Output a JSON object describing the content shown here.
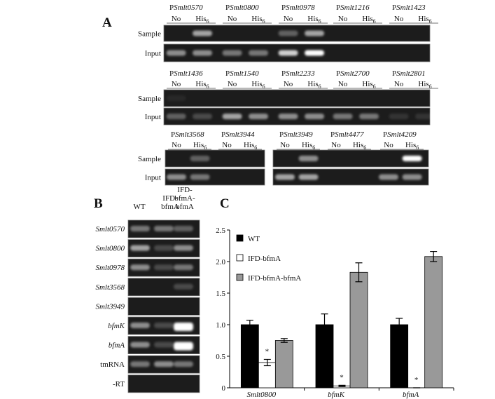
{
  "panel_a": {
    "label": "A",
    "row_labels": [
      "Sample",
      "Input"
    ],
    "promoter_prefix": "P",
    "lanes": [
      {
        "text": "No"
      },
      {
        "text": "His",
        "sub": "6"
      }
    ],
    "promoters": [
      [
        "Smlt0570",
        "Smlt0800",
        "Smlt0978",
        "Smlt1216",
        "Smlt1423"
      ],
      [
        "Smlt1436",
        "Smlt1540",
        "Smlt2233",
        "Smlt2700",
        "Smlt2801"
      ],
      [
        "Smlt3568",
        "Smlt3944",
        "Smlt3949",
        "Smlt4477",
        "Smlt4209"
      ]
    ]
  },
  "panel_b": {
    "label": "B",
    "columns": [
      [
        "WT"
      ],
      [
        "IFD-",
        "bfmA"
      ],
      [
        "IFD-",
        "bfmA-",
        "bfmA"
      ]
    ],
    "rows": [
      {
        "text": "Smlt0570",
        "italic": true
      },
      {
        "text": "Smlt0800",
        "italic": true
      },
      {
        "text": "Smlt0978",
        "italic": true
      },
      {
        "text": "Smlt3568",
        "italic": true
      },
      {
        "text": "Smlt3949",
        "italic": true
      },
      {
        "text": "bfmK",
        "italic": true
      },
      {
        "text": "bfmA",
        "italic": true
      },
      {
        "text": "tmRNA",
        "italic": false
      },
      {
        "text": "-RT",
        "italic": false
      }
    ]
  },
  "chart_data": {
    "type": "bar",
    "panel_label": "C",
    "categories": [
      "Smlt0800",
      "bfmK",
      "bfmA"
    ],
    "series": [
      {
        "name": "WT",
        "color": "#000000",
        "values": [
          1.0,
          1.0,
          1.0
        ],
        "errors": [
          0.07,
          0.17,
          0.1
        ]
      },
      {
        "name": "IFD-bfmA",
        "color": "#ffffff",
        "values": [
          0.4,
          0.03,
          0.0
        ],
        "errors": [
          0.05,
          0.01,
          0.0
        ]
      },
      {
        "name": "IFD-bfmA-bfmA",
        "color": "#999999",
        "values": [
          0.75,
          1.83,
          2.08
        ],
        "errors": [
          0.03,
          0.15,
          0.08
        ]
      }
    ],
    "asterisks": [
      "*",
      "*",
      "*"
    ],
    "ylim": [
      0,
      2.5
    ],
    "yticks": [
      0,
      0.5,
      {
        "value": 1,
        "label": "1.0"
      },
      1.5,
      {
        "value": 2,
        "label": "2.0"
      },
      2.5
    ],
    "legend": "upper left",
    "grid": false
  }
}
